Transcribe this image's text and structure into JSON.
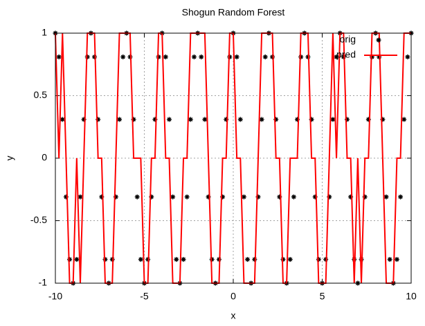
{
  "chart_data": {
    "type": "line",
    "title": "Shogun Random Forest",
    "x_label": "x",
    "y_label": "y",
    "x": [
      -10,
      -9.8,
      -9.6,
      -9.4,
      -9.2,
      -9,
      -8.8,
      -8.6,
      -8.4,
      -8.2,
      -8,
      -7.8,
      -7.6,
      -7.4,
      -7.2,
      -7,
      -6.8,
      -6.6,
      -6.4,
      -6.2,
      -6,
      -5.8,
      -5.6,
      -5.4,
      -5.2,
      -5,
      -4.8,
      -4.6,
      -4.4,
      -4.2,
      -4,
      -3.8,
      -3.6,
      -3.4,
      -3.2,
      -3,
      -2.8,
      -2.6,
      -2.4,
      -2.2,
      -2,
      -1.8,
      -1.6,
      -1.4,
      -1.2,
      -1,
      -0.8,
      -0.6,
      -0.4,
      -0.2,
      0,
      0.2,
      0.4,
      0.6,
      0.8,
      1,
      1.2,
      1.4,
      1.6,
      1.8,
      2,
      2.2,
      2.4,
      2.6,
      2.8,
      3,
      3.2,
      3.4,
      3.6,
      3.8,
      4,
      4.2,
      4.4,
      4.6,
      4.8,
      5,
      5.2,
      5.4,
      5.6,
      5.8,
      6,
      6.2,
      6.4,
      6.6,
      6.8,
      7,
      7.2,
      7.4,
      7.6,
      7.8,
      8,
      8.2,
      8.4,
      8.6,
      8.8,
      9,
      9.2,
      9.4,
      9.6,
      9.8,
      10
    ],
    "series": [
      {
        "name": "orig",
        "color": "#000000",
        "style": "points",
        "values": [
          1,
          0.81,
          0.31,
          -0.31,
          -0.81,
          -1,
          -0.81,
          -0.31,
          0.31,
          0.81,
          1,
          0.81,
          0.31,
          -0.31,
          -0.81,
          -1,
          -0.81,
          -0.31,
          0.31,
          0.81,
          1,
          0.81,
          0.31,
          -0.31,
          -0.81,
          -1,
          -0.81,
          -0.31,
          0.31,
          0.81,
          1,
          0.81,
          0.31,
          -0.31,
          -0.81,
          -1,
          -0.81,
          -0.31,
          0.31,
          0.81,
          1,
          0.81,
          0.31,
          -0.31,
          -0.81,
          -1,
          -0.81,
          -0.31,
          0.31,
          0.81,
          1,
          0.81,
          0.31,
          -0.31,
          -0.81,
          -1,
          -0.81,
          -0.31,
          0.31,
          0.81,
          1,
          0.81,
          0.31,
          -0.31,
          -0.81,
          -1,
          -0.81,
          -0.31,
          0.31,
          0.81,
          1,
          0.81,
          0.31,
          -0.31,
          -0.81,
          -1,
          -0.81,
          -0.31,
          0.31,
          0.81,
          1,
          0.81,
          0.31,
          -0.31,
          -0.81,
          -1,
          -0.81,
          -0.31,
          0.31,
          0.81,
          1,
          0.81,
          0.31,
          -0.31,
          -0.81,
          -1,
          -0.81,
          -0.31,
          0.31,
          0.81,
          1
        ]
      },
      {
        "name": "pred",
        "color": "#ff0000",
        "style": "lines",
        "values": [
          1,
          0,
          1,
          0,
          -1,
          -1,
          0,
          -1,
          0,
          1,
          1,
          1,
          0,
          0,
          -1,
          -1,
          -1,
          0,
          1,
          1,
          1,
          1,
          0,
          0,
          0,
          -1,
          -1,
          0,
          0,
          1,
          1,
          0,
          0,
          -1,
          -1,
          -1,
          0,
          0,
          1,
          1,
          1,
          1,
          1,
          0,
          -1,
          -1,
          -1,
          0,
          0,
          1,
          1,
          0,
          0,
          -1,
          -1,
          -1,
          -1,
          0,
          1,
          1,
          1,
          1,
          0,
          0,
          -1,
          -1,
          0,
          0,
          0,
          1,
          1,
          1,
          0,
          0,
          -1,
          -1,
          -1,
          0,
          1,
          0,
          1,
          1,
          0,
          0,
          -1,
          0,
          -1,
          0,
          0,
          1,
          1,
          1,
          0,
          -1,
          -1,
          -1,
          0,
          0,
          1,
          1,
          1
        ]
      }
    ],
    "xlim": [
      -10,
      10
    ],
    "xticks": [
      -10,
      -5,
      0,
      5,
      10
    ],
    "ylim": [
      -1,
      1
    ],
    "yticks": [
      -1,
      -0.5,
      0,
      0.5,
      1
    ],
    "grid": true,
    "legend": "top right"
  }
}
